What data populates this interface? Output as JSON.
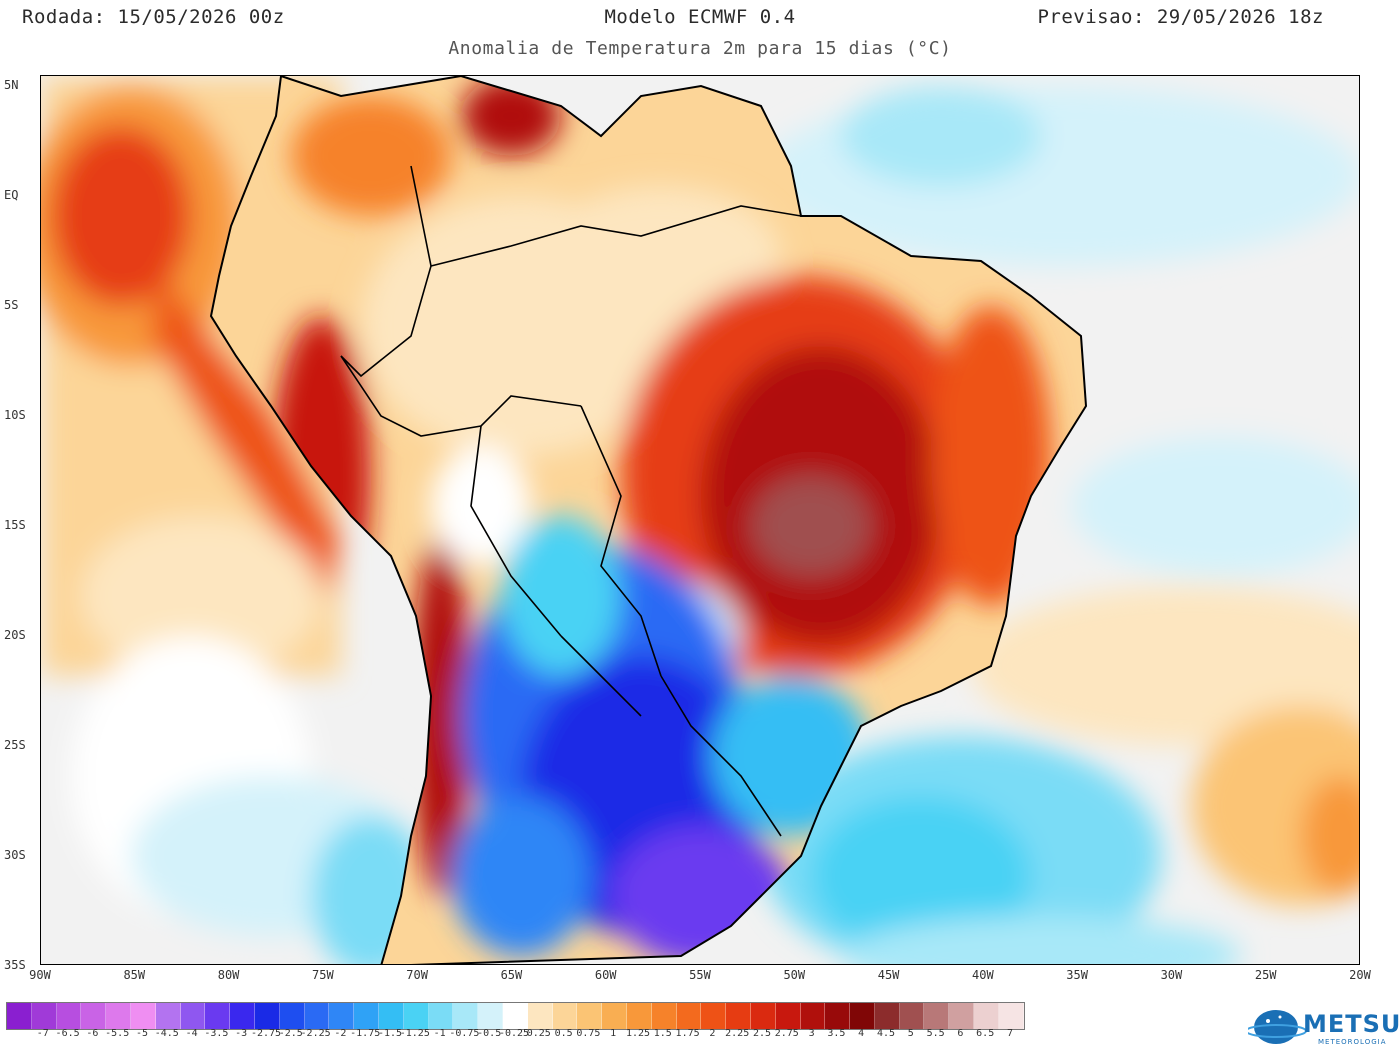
{
  "header": {
    "rodada": "Rodada: 15/05/2026 00z",
    "modelo": "Modelo ECMWF 0.4",
    "previsao": "Previsao: 29/05/2026 18z",
    "subtitle": "Anomalia de Temperatura 2m para 15 dias (°C)"
  },
  "map": {
    "lat_labels": [
      "5N",
      "EQ",
      "5S",
      "10S",
      "15S",
      "20S",
      "25S",
      "30S",
      "35S"
    ],
    "lon_labels": [
      "90W",
      "85W",
      "80W",
      "75W",
      "70W",
      "65W",
      "60W",
      "55W",
      "50W",
      "45W",
      "40W",
      "35W",
      "30W",
      "25W",
      "20W"
    ],
    "colors": {
      "ocean": "#f2f2f2",
      "coast": "#000000"
    }
  },
  "colorbar": {
    "labels": [
      "-7",
      "-6.5",
      "-6",
      "-5.5",
      "-5",
      "-4.5",
      "-4",
      "-3.5",
      "-3",
      "-2.75",
      "-2.5",
      "-2.25",
      "-2",
      "-1.75",
      "-1.5",
      "-1.25",
      "-1",
      "-0.75",
      "-0.5",
      "-0.25",
      "0.25",
      "0.5",
      "0.75",
      "1",
      "1.25",
      "1.5",
      "1.75",
      "2",
      "2.25",
      "2.5",
      "2.75",
      "3",
      "3.5",
      "4",
      "4.5",
      "5",
      "5.5",
      "6",
      "6.5",
      "7"
    ],
    "colors": [
      "#8a1fd0",
      "#a03ad8",
      "#b74ee0",
      "#c963e6",
      "#dd79ec",
      "#ef8ef2",
      "#b373f0",
      "#8f57f0",
      "#6a3af0",
      "#3a28ee",
      "#1a2ae6",
      "#1e4ef0",
      "#2a6af4",
      "#2f86f6",
      "#2fa2f6",
      "#34bef4",
      "#4ad2f4",
      "#7adcf6",
      "#a8e8f8",
      "#d4f2fa",
      "#ffffff",
      "#fde6c0",
      "#fcd598",
      "#fbc474",
      "#f9ae52",
      "#f8983a",
      "#f6822a",
      "#f36a1e",
      "#ee5216",
      "#e63c12",
      "#da2a10",
      "#c8180e",
      "#b0100c",
      "#980a0a",
      "#800606",
      "#8c2c2c",
      "#a05050",
      "#b87878",
      "#d0a0a0",
      "#ecd0d0",
      "#f6e4e4"
    ]
  },
  "logo": {
    "name": "METSUL",
    "sub": "METEOROLOGIA"
  }
}
